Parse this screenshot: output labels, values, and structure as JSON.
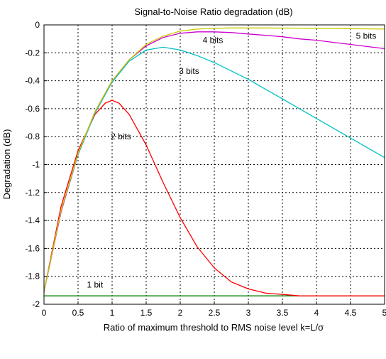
{
  "chart_data": {
    "type": "line",
    "title": "Signal-to-Noise Ratio degradation (dB)",
    "xlabel": "Ratio of maximum threshold to RMS noise level k=L/σ",
    "ylabel": "Degradation (dB)",
    "xlim": [
      0,
      5
    ],
    "ylim": [
      -2,
      0
    ],
    "xticks": [
      "0",
      "0.5",
      "1",
      "1.5",
      "2",
      "2.5",
      "3",
      "3.5",
      "4",
      "4.5",
      "5"
    ],
    "yticks": [
      "0",
      "-0.2",
      "-0.4",
      "-0.6",
      "-0.8",
      "-1",
      "-1.2",
      "-1.4",
      "-1.6",
      "-1.8",
      "-2"
    ],
    "grid": true,
    "series": [
      {
        "name": "1 bit",
        "color": "#008000",
        "label_at": [
          0.63,
          -1.88
        ],
        "points": [
          [
            0,
            -1.94
          ],
          [
            5,
            -1.94
          ]
        ]
      },
      {
        "name": "2 bits",
        "color": "#ff0000",
        "label_at": [
          0.98,
          -0.82
        ],
        "points": [
          [
            0,
            -1.91
          ],
          [
            0.25,
            -1.3
          ],
          [
            0.5,
            -0.9
          ],
          [
            0.75,
            -0.64
          ],
          [
            0.9,
            -0.56
          ],
          [
            1.0,
            -0.54
          ],
          [
            1.1,
            -0.56
          ],
          [
            1.25,
            -0.64
          ],
          [
            1.5,
            -0.86
          ],
          [
            1.75,
            -1.13
          ],
          [
            2.0,
            -1.38
          ],
          [
            2.25,
            -1.59
          ],
          [
            2.5,
            -1.74
          ],
          [
            2.75,
            -1.84
          ],
          [
            3.0,
            -1.89
          ],
          [
            3.25,
            -1.92
          ],
          [
            3.5,
            -1.93
          ],
          [
            3.75,
            -1.94
          ],
          [
            4.0,
            -1.94
          ],
          [
            5.0,
            -1.94
          ]
        ]
      },
      {
        "name": "3 bits",
        "color": "#00c0c0",
        "label_at": [
          1.98,
          -0.35
        ],
        "points": [
          [
            0,
            -1.91
          ],
          [
            0.25,
            -1.34
          ],
          [
            0.5,
            -0.93
          ],
          [
            0.75,
            -0.63
          ],
          [
            1.0,
            -0.41
          ],
          [
            1.25,
            -0.26
          ],
          [
            1.5,
            -0.18
          ],
          [
            1.75,
            -0.16
          ],
          [
            2.0,
            -0.18
          ],
          [
            2.25,
            -0.22
          ],
          [
            2.5,
            -0.27
          ],
          [
            2.75,
            -0.33
          ],
          [
            3.0,
            -0.39
          ],
          [
            3.25,
            -0.46
          ],
          [
            3.5,
            -0.53
          ],
          [
            3.75,
            -0.6
          ],
          [
            4.0,
            -0.67
          ],
          [
            4.25,
            -0.74
          ],
          [
            4.5,
            -0.81
          ],
          [
            4.75,
            -0.88
          ],
          [
            5.0,
            -0.95
          ]
        ]
      },
      {
        "name": "4 bits",
        "color": "#cc00cc",
        "label_at": [
          2.33,
          -0.13
        ],
        "points": [
          [
            0,
            -1.91
          ],
          [
            0.25,
            -1.34
          ],
          [
            0.5,
            -0.92
          ],
          [
            0.75,
            -0.62
          ],
          [
            1.0,
            -0.4
          ],
          [
            1.25,
            -0.25
          ],
          [
            1.5,
            -0.15
          ],
          [
            1.75,
            -0.09
          ],
          [
            2.0,
            -0.06
          ],
          [
            2.25,
            -0.05
          ],
          [
            2.5,
            -0.05
          ],
          [
            2.75,
            -0.055
          ],
          [
            3.0,
            -0.065
          ],
          [
            3.25,
            -0.075
          ],
          [
            3.5,
            -0.085
          ],
          [
            3.75,
            -0.1
          ],
          [
            4.0,
            -0.11
          ],
          [
            4.25,
            -0.125
          ],
          [
            4.5,
            -0.14
          ],
          [
            4.75,
            -0.155
          ],
          [
            5.0,
            -0.17
          ]
        ]
      },
      {
        "name": "5 bits",
        "color": "#c8c800",
        "label_at": [
          4.58,
          -0.1
        ],
        "points": [
          [
            0,
            -1.91
          ],
          [
            0.25,
            -1.33
          ],
          [
            0.5,
            -0.92
          ],
          [
            0.75,
            -0.62
          ],
          [
            1.0,
            -0.4
          ],
          [
            1.25,
            -0.25
          ],
          [
            1.5,
            -0.14
          ],
          [
            1.75,
            -0.08
          ],
          [
            2.0,
            -0.045
          ],
          [
            2.25,
            -0.03
          ],
          [
            2.5,
            -0.025
          ],
          [
            2.75,
            -0.022
          ],
          [
            3.0,
            -0.022
          ],
          [
            3.5,
            -0.023
          ],
          [
            4.0,
            -0.025
          ],
          [
            4.5,
            -0.027
          ],
          [
            5.0,
            -0.03
          ]
        ]
      }
    ]
  }
}
